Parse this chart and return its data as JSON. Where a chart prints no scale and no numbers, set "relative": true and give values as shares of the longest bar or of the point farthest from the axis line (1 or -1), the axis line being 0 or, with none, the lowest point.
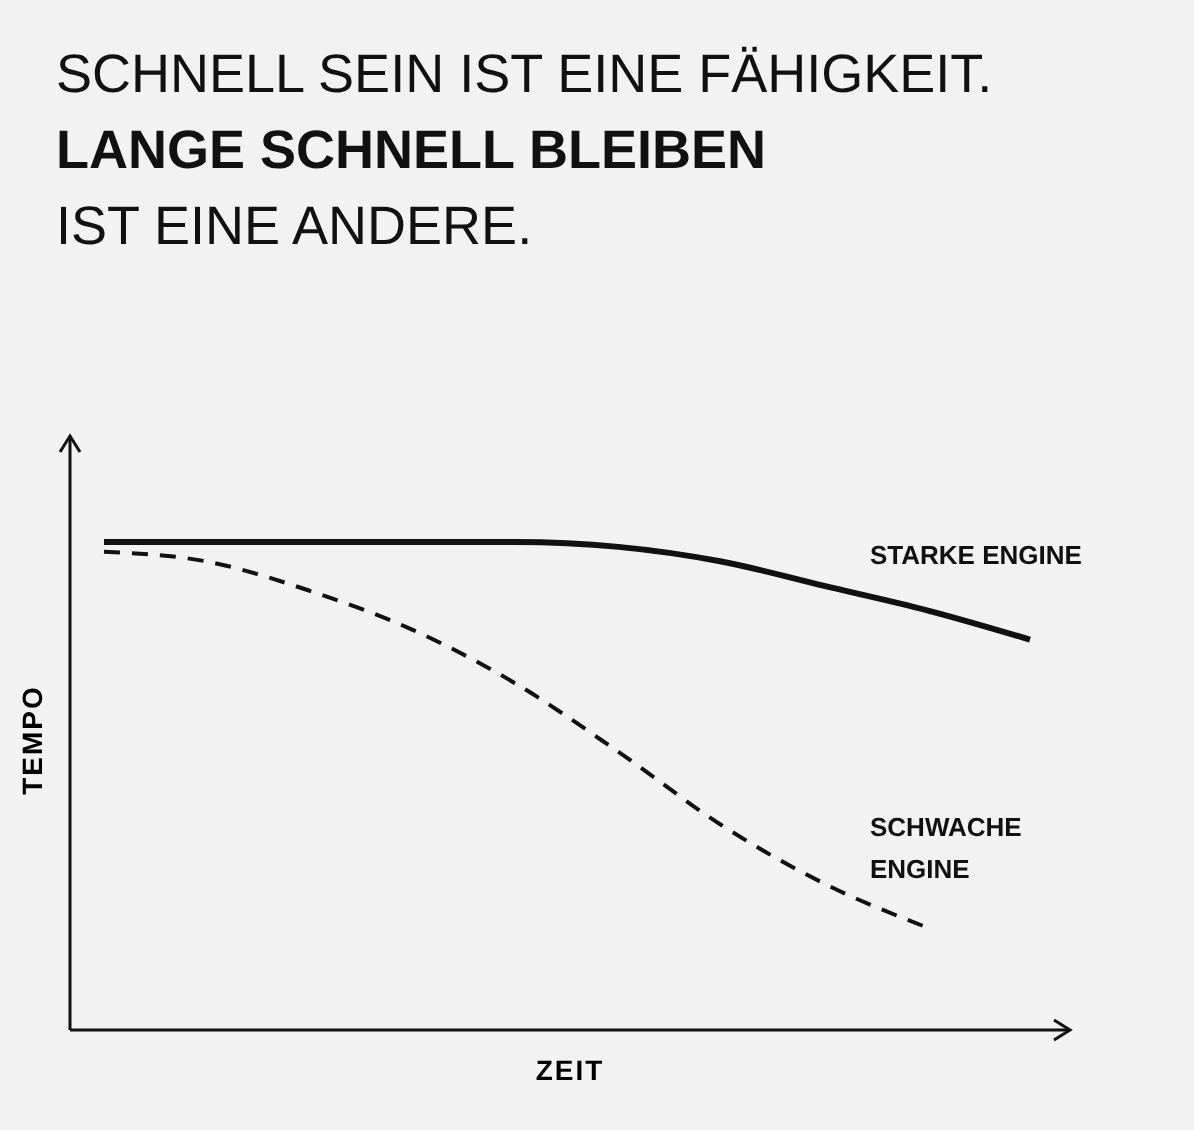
{
  "chart_data": {
    "type": "line",
    "relative": true,
    "title": "SCHNELL SEIN IST EINE FÄHIGKEIT.",
    "subtitle": "LANGE SCHNELL BLEIBEN",
    "annotations": [
      "IST EINE ANDERE."
    ],
    "xlabel": "ZEIT",
    "ylabel": "TEMPO",
    "categories": [
      null,
      null,
      null,
      null,
      null,
      null,
      null,
      null,
      null,
      null
    ],
    "marker": "none",
    "legend": false,
    "series": [
      {
        "name": "STARKE ENGINE",
        "color": "#111111",
        "line_style": "solid",
        "values": [
          1,
          1,
          1,
          1,
          1,
          0.99,
          0.96,
          0.91,
          0.86,
          0.8
        ]
      },
      {
        "name": "SCHWACHE ENGINE",
        "color": "#111111",
        "line_style": "dashed",
        "values": [
          0.98,
          0.96,
          0.9,
          0.82,
          0.71,
          0.57,
          0.42,
          0.3,
          0.21,
          null
        ]
      }
    ]
  }
}
